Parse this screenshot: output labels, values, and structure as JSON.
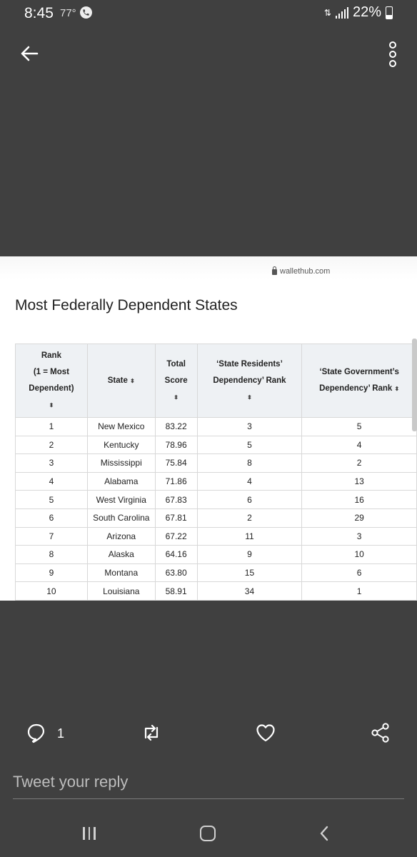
{
  "status": {
    "time": "8:45",
    "temp": "77°",
    "battery": "22%"
  },
  "icons": {
    "back": "arrow-left-icon",
    "more": "more-vertical-icon",
    "reply": "comment-icon",
    "retweet": "retweet-icon",
    "like": "heart-icon",
    "share": "share-icon"
  },
  "media": {
    "site": "wallethub.com",
    "title": "Most Federally Dependent States",
    "table": {
      "headers": {
        "rank_line1": "Rank",
        "rank_line2": "(1 = Most",
        "rank_line3": "Dependent)",
        "state": "State",
        "score_line1": "Total",
        "score_line2": "Score",
        "residents_line1": "‘State Residents’",
        "residents_line2": "Dependency’ Rank",
        "government_line1": "‘State Government’s",
        "government_line2": "Dependency’ Rank",
        "sort_glyph": "⬍"
      },
      "rows": [
        {
          "rank": "1",
          "state": "New Mexico",
          "score": "83.22",
          "residents": "3",
          "government": "5"
        },
        {
          "rank": "2",
          "state": "Kentucky",
          "score": "78.96",
          "residents": "5",
          "government": "4"
        },
        {
          "rank": "3",
          "state": "Mississippi",
          "score": "75.84",
          "residents": "8",
          "government": "2"
        },
        {
          "rank": "4",
          "state": "Alabama",
          "score": "71.86",
          "residents": "4",
          "government": "13"
        },
        {
          "rank": "5",
          "state": "West Virginia",
          "score": "67.83",
          "residents": "6",
          "government": "16"
        },
        {
          "rank": "6",
          "state": "South Carolina",
          "score": "67.81",
          "residents": "2",
          "government": "29"
        },
        {
          "rank": "7",
          "state": "Arizona",
          "score": "67.22",
          "residents": "11",
          "government": "3"
        },
        {
          "rank": "8",
          "state": "Alaska",
          "score": "64.16",
          "residents": "9",
          "government": "10"
        },
        {
          "rank": "9",
          "state": "Montana",
          "score": "63.80",
          "residents": "15",
          "government": "6"
        },
        {
          "rank": "10",
          "state": "Louisiana",
          "score": "58.91",
          "residents": "34",
          "government": "1"
        }
      ]
    }
  },
  "actions": {
    "reply_count": "1"
  },
  "reply": {
    "placeholder": "Tweet your reply"
  }
}
